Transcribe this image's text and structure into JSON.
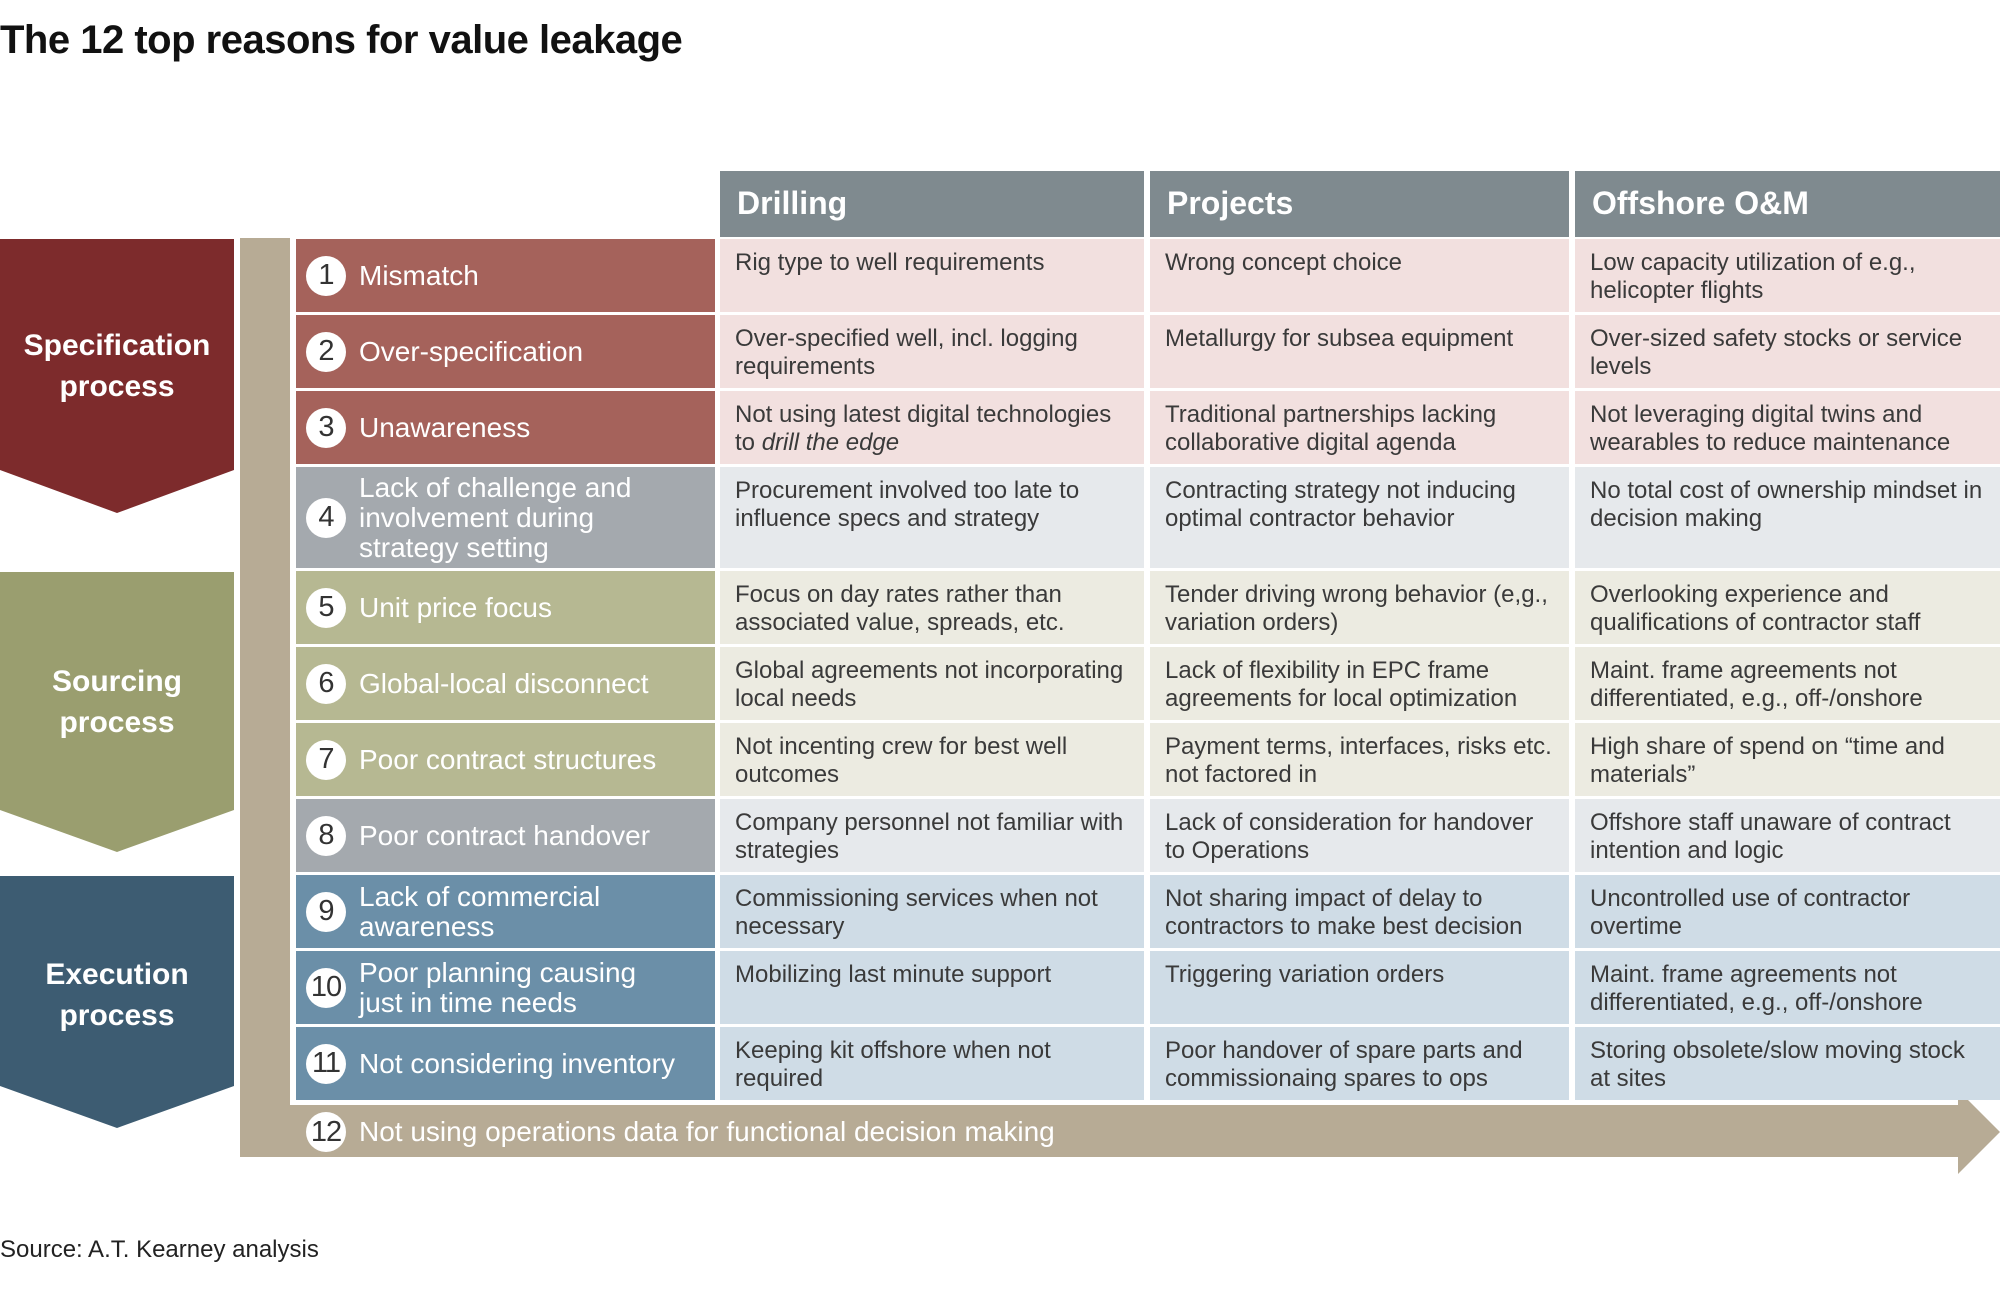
{
  "title": "The 12 top reasons for value leakage",
  "source": "Source: A.T. Kearney analysis",
  "colors": {
    "specification": "#7d2b2c",
    "sourcing": "#9a9e6f",
    "execution": "#3d5c72",
    "spec_row": "#a5625b",
    "spec_cell": "#f2e0df",
    "neutral_row": "#a4a9ae",
    "neutral_cell": "#e6e9ec",
    "sourcing_row": "#b6b892",
    "sourcing_cell": "#ecebe1",
    "execution_row": "#6b8fa8",
    "execution_cell": "#cfdce6",
    "header": "#7f8a8f",
    "bracket": "#b7ab95"
  },
  "phases": [
    {
      "label_line1": "Specification",
      "label_line2": "process"
    },
    {
      "label_line1": "Sourcing",
      "label_line2": "process"
    },
    {
      "label_line1": "Execution",
      "label_line2": "process"
    }
  ],
  "columns": [
    "Drilling",
    "Projects",
    "Offshore O&M"
  ],
  "rows": [
    {
      "num": "1",
      "reason": "Mismatch",
      "drilling": "Rig type to well requirements",
      "projects": "Wrong concept choice",
      "offshore": "Low capacity utilization of e.g., helicopter flights"
    },
    {
      "num": "2",
      "reason": "Over-specification",
      "drilling": "Over-specified well, incl. logging requirements",
      "projects": "Metallurgy for subsea equipment",
      "offshore": "Over-sized safety stocks or service levels"
    },
    {
      "num": "3",
      "reason": "Unawareness",
      "drilling_part1": "Not using latest digital technologies to ",
      "drilling_em": "drill the edge",
      "projects": "Traditional partnerships lacking collaborative digital agenda",
      "offshore": "Not leveraging digital twins and wearables to reduce maintenance"
    },
    {
      "num": "4",
      "reason": "Lack of challenge and involvement during strategy setting",
      "drilling": "Procurement involved too late to influence specs and strategy",
      "projects": "Contracting strategy not inducing optimal contractor behavior",
      "offshore": "No total cost of ownership mindset in decision making"
    },
    {
      "num": "5",
      "reason": "Unit price focus",
      "drilling": "Focus on day rates rather than associated value, spreads, etc.",
      "projects": "Tender driving wrong behavior (e,g., variation orders)",
      "offshore": "Overlooking experience and qualifications of contractor staff"
    },
    {
      "num": "6",
      "reason": "Global-local disconnect",
      "drilling": "Global agreements not incorporating local needs",
      "projects": "Lack of flexibility in EPC frame agreements for local optimization",
      "offshore": "Maint. frame agreements not differentiated, e.g., off-/onshore"
    },
    {
      "num": "7",
      "reason": "Poor contract structures",
      "drilling": "Not incenting crew for best well outcomes",
      "projects": "Payment terms, interfaces, risks etc. not factored in",
      "offshore": "High share of spend on “time and materials”"
    },
    {
      "num": "8",
      "reason": "Poor contract handover",
      "drilling": "Company personnel not familiar with strategies",
      "projects": "Lack of consideration for handover to Operations",
      "offshore": "Offshore staff unaware of contract intention and logic"
    },
    {
      "num": "9",
      "reason": "Lack of commercial awareness",
      "drilling": "Commissioning services when not necessary",
      "projects": "Not sharing impact of delay to contractors to make best decision",
      "offshore": "Uncontrolled use of contractor overtime"
    },
    {
      "num": "10",
      "reason": "Poor planning causing just in time needs",
      "drilling": "Mobilizing last minute support",
      "projects": "Triggering variation orders",
      "offshore": "Maint. frame agreements not differentiated, e.g., off-/onshore"
    },
    {
      "num": "11",
      "reason": "Not considering inventory",
      "drilling": "Keeping kit offshore when not required",
      "projects": "Poor handover of spare parts and commissionaing spares to ops",
      "offshore": "Storing obsolete/slow moving stock at sites"
    }
  ],
  "footer_reason": {
    "num": "12",
    "reason": "Not using operations data for functional decision making"
  }
}
